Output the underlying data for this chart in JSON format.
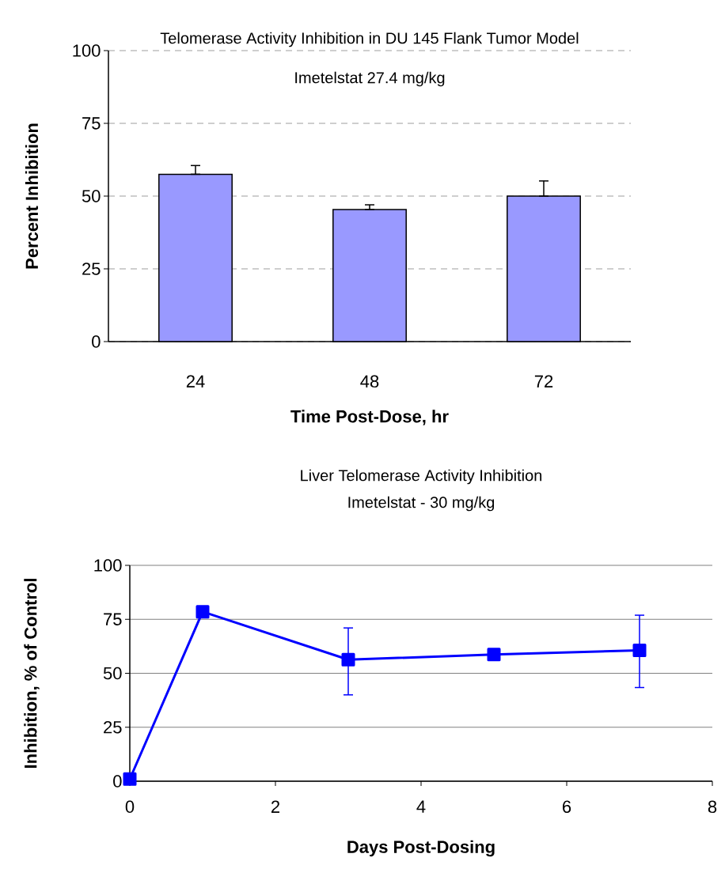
{
  "chart_data": [
    {
      "type": "bar",
      "title": "Telomerase Activity Inhibition in DU 145 Flank Tumor Model",
      "subtitle": "Imetelstat 27.4 mg/kg",
      "xlabel": "Time Post-Dose, hr",
      "ylabel": "Percent Inhibition",
      "categories": [
        "24",
        "48",
        "72"
      ],
      "values": [
        57.5,
        45.4,
        50
      ],
      "errors": [
        [
          57.5,
          60.5
        ],
        [
          45.4,
          47
        ],
        [
          50,
          55.2
        ]
      ],
      "color": "#9999ff",
      "ylim": [
        0,
        100
      ],
      "yticks": [
        0,
        25,
        50,
        75,
        100
      ],
      "grid": "y"
    },
    {
      "type": "line",
      "title": "Liver Telomerase Activity Inhibition",
      "subtitle": "Imetelstat - 30 mg/kg",
      "xlabel": "Days Post-Dosing",
      "ylabel": "Inhibition, % of Control",
      "x": [
        0,
        1,
        3,
        5,
        7
      ],
      "values": [
        1,
        78.5,
        56.3,
        58.7,
        60.6
      ],
      "errors": [
        null,
        null,
        [
          40,
          71
        ],
        null,
        [
          43.4,
          76.9
        ]
      ],
      "color": "#0000ff",
      "marker": "square",
      "xlim": [
        0,
        8
      ],
      "xticks": [
        0,
        2,
        4,
        6,
        8
      ],
      "ylim": [
        0,
        100
      ],
      "yticks": [
        0,
        25,
        50,
        75,
        100
      ],
      "grid": "y"
    }
  ]
}
